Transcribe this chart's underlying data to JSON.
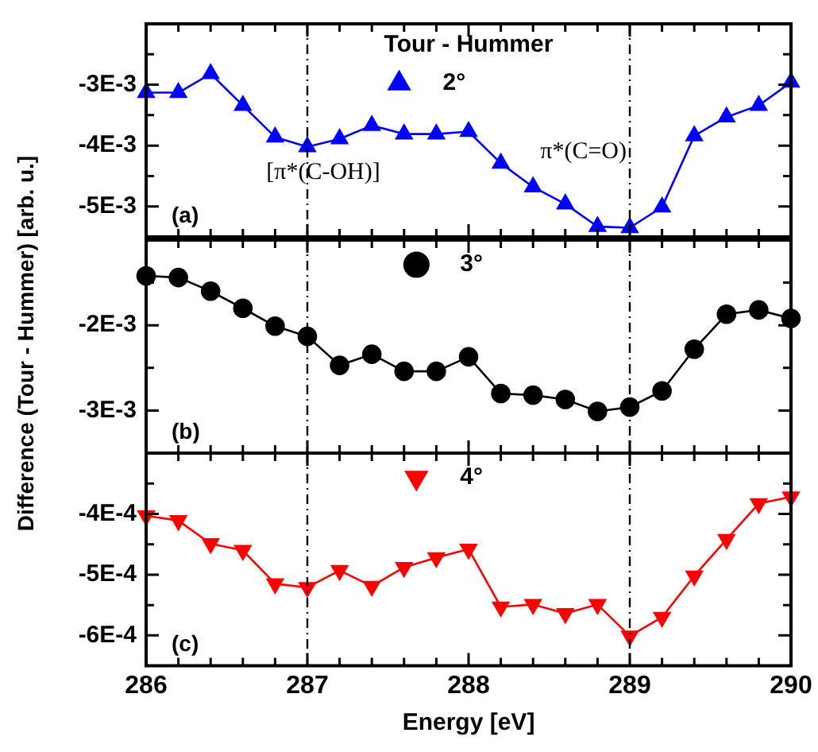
{
  "chart_data": [
    {
      "type": "line",
      "ylabel": "Difference (Tour - Hummer) [arb. u.]",
      "legend_title": "Tour - Hummer",
      "tick_labels": "y",
      "legend": "top",
      "grid": false,
      "x": [
        286,
        286.2,
        286.4,
        286.6,
        286.8,
        287,
        287.2,
        287.4,
        287.6,
        287.8,
        288,
        288.2,
        288.4,
        288.6,
        288.8,
        289,
        289.2,
        289.4,
        289.6,
        289.8,
        290
      ],
      "series": [
        {
          "name": "2°",
          "color": "#0000ff",
          "marker": "triangle",
          "values": [
            -0.00313,
            -0.00313,
            -0.00282,
            -0.00334,
            -0.00386,
            -0.00402,
            -0.00389,
            -0.00367,
            -0.00381,
            -0.00381,
            -0.00377,
            -0.00429,
            -0.00468,
            -0.00496,
            -0.00533,
            -0.00535,
            -0.00501,
            -0.00384,
            -0.00353,
            -0.00334,
            -0.00296
          ]
        }
      ],
      "xlim": [
        286,
        290
      ],
      "xticks": [
        286,
        {
          "value": 286.2,
          "label": null
        },
        {
          "value": 286.4,
          "label": null
        },
        {
          "value": 286.6,
          "label": null
        },
        {
          "value": 286.8,
          "label": null
        },
        287,
        {
          "value": 287.2,
          "label": null
        },
        {
          "value": 287.4,
          "label": null
        },
        {
          "value": 287.6,
          "label": null
        },
        {
          "value": 287.8,
          "label": null
        },
        288,
        {
          "value": 288.2,
          "label": null
        },
        {
          "value": 288.4,
          "label": null
        },
        {
          "value": 288.6,
          "label": null
        },
        {
          "value": 288.8,
          "label": null
        },
        289,
        {
          "value": 289.2,
          "label": null
        },
        {
          "value": 289.4,
          "label": null
        },
        {
          "value": 289.6,
          "label": null
        },
        {
          "value": 289.8,
          "label": null
        },
        290
      ],
      "ylim": [
        -0.0055,
        -0.002
      ],
      "yticks": [
        {
          "value": -0.005,
          "label": "-5E-3"
        },
        {
          "value": -0.0045,
          "label": null
        },
        {
          "value": -0.004,
          "label": "-4E-3"
        },
        {
          "value": -0.0035,
          "label": null
        },
        {
          "value": -0.003,
          "label": "-3E-3"
        },
        {
          "value": -0.0025,
          "label": null
        }
      ],
      "ref_lines": [
        {
          "axis": "x",
          "value": 287,
          "line_style": "dashdot",
          "color": "#000000",
          "label": "[π*(C-OH)]"
        },
        {
          "axis": "x",
          "value": 289,
          "line_style": "dashdot",
          "color": "#000000",
          "label": "π*(C=O)"
        }
      ],
      "annotations": [
        "(a)"
      ]
    },
    {
      "type": "line",
      "tick_labels": "y",
      "legend": "top",
      "grid": false,
      "x": [
        286,
        286.2,
        286.4,
        286.6,
        286.8,
        287,
        287.2,
        287.4,
        287.6,
        287.8,
        288,
        288.2,
        288.4,
        288.6,
        288.8,
        289,
        289.2,
        289.4,
        289.6,
        289.8,
        290
      ],
      "series": [
        {
          "name": "3°",
          "color": "#000000",
          "marker": "circle",
          "values": [
            -0.00142,
            -0.00144,
            -0.0016,
            -0.0018,
            -0.00201,
            -0.00213,
            -0.00247,
            -0.00234,
            -0.00254,
            -0.00254,
            -0.00237,
            -0.0028,
            -0.00282,
            -0.00287,
            -0.00301,
            -0.00296,
            -0.00277,
            -0.00228,
            -0.00187,
            -0.00182,
            -0.00192
          ]
        }
      ],
      "xlim": [
        286,
        290
      ],
      "xticks": [
        286,
        {
          "value": 286.2,
          "label": null
        },
        {
          "value": 286.4,
          "label": null
        },
        {
          "value": 286.6,
          "label": null
        },
        {
          "value": 286.8,
          "label": null
        },
        287,
        {
          "value": 287.2,
          "label": null
        },
        {
          "value": 287.4,
          "label": null
        },
        {
          "value": 287.6,
          "label": null
        },
        {
          "value": 287.8,
          "label": null
        },
        288,
        {
          "value": 288.2,
          "label": null
        },
        {
          "value": 288.4,
          "label": null
        },
        {
          "value": 288.6,
          "label": null
        },
        {
          "value": 288.8,
          "label": null
        },
        289,
        {
          "value": 289.2,
          "label": null
        },
        {
          "value": 289.4,
          "label": null
        },
        {
          "value": 289.6,
          "label": null
        },
        {
          "value": 289.8,
          "label": null
        },
        290
      ],
      "ylim": [
        -0.0035,
        -0.001
      ],
      "yticks": [
        {
          "value": -0.003,
          "label": "-3E-3"
        },
        {
          "value": -0.0025,
          "label": null
        },
        {
          "value": -0.002,
          "label": "-2E-3"
        },
        {
          "value": -0.0015,
          "label": null
        }
      ],
      "ref_lines": [
        {
          "axis": "x",
          "value": 287,
          "line_style": "dashdot",
          "color": "#000000"
        },
        {
          "axis": "x",
          "value": 289,
          "line_style": "dashdot",
          "color": "#000000"
        }
      ],
      "annotations": [
        "(b)"
      ]
    },
    {
      "type": "line",
      "xlabel": "Energy [eV]",
      "legend": "top",
      "grid": false,
      "x": [
        286,
        286.2,
        286.4,
        286.6,
        286.8,
        287,
        287.2,
        287.4,
        287.6,
        287.8,
        288,
        288.2,
        288.4,
        288.6,
        288.8,
        289,
        289.2,
        289.4,
        289.6,
        289.8,
        290
      ],
      "series": [
        {
          "name": "4°",
          "color": "#ff0000",
          "marker": "triangle_down",
          "values": [
            -0.000403,
            -0.000411,
            -0.000449,
            -0.00046,
            -0.000515,
            -0.000521,
            -0.000493,
            -0.000519,
            -0.000488,
            -0.000472,
            -0.000458,
            -0.000553,
            -0.000549,
            -0.000564,
            -0.000549,
            -0.000601,
            -0.00057,
            -0.000502,
            -0.000442,
            -0.000383,
            -0.000372
          ]
        }
      ],
      "xlim": [
        286,
        290
      ],
      "xticks": [
        286,
        {
          "value": 286.2,
          "label": null
        },
        {
          "value": 286.4,
          "label": null
        },
        {
          "value": 286.6,
          "label": null
        },
        {
          "value": 286.8,
          "label": null
        },
        287,
        {
          "value": 287.2,
          "label": null
        },
        {
          "value": 287.4,
          "label": null
        },
        {
          "value": 287.6,
          "label": null
        },
        {
          "value": 287.8,
          "label": null
        },
        288,
        {
          "value": 288.2,
          "label": null
        },
        {
          "value": 288.4,
          "label": null
        },
        {
          "value": 288.6,
          "label": null
        },
        {
          "value": 288.8,
          "label": null
        },
        289,
        {
          "value": 289.2,
          "label": null
        },
        {
          "value": 289.4,
          "label": null
        },
        {
          "value": 289.6,
          "label": null
        },
        {
          "value": 289.8,
          "label": null
        },
        290
      ],
      "ylim": [
        -0.00065,
        -0.0003
      ],
      "yticks": [
        {
          "value": -0.0006,
          "label": "-6E-4"
        },
        {
          "value": -0.00055,
          "label": null
        },
        {
          "value": -0.0005,
          "label": "-5E-4"
        },
        {
          "value": -0.00045,
          "label": null
        },
        {
          "value": -0.0004,
          "label": "-4E-4"
        },
        {
          "value": -0.00035,
          "label": null
        }
      ],
      "ref_lines": [
        {
          "axis": "x",
          "value": 287,
          "line_style": "dashdot",
          "color": "#000000"
        },
        {
          "axis": "x",
          "value": 289,
          "line_style": "dashdot",
          "color": "#000000"
        }
      ],
      "annotations": [
        "(c)"
      ]
    }
  ]
}
